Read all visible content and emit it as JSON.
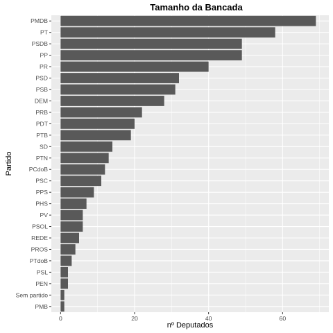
{
  "chart_data": {
    "type": "bar",
    "orientation": "horizontal",
    "title": "Tamanho da Bancada",
    "xlabel": "nº Deputados",
    "ylabel": "Partido",
    "categories": [
      "PMDB",
      "PT",
      "PSDB",
      "PP",
      "PR",
      "PSD",
      "PSB",
      "DEM",
      "PRB",
      "PDT",
      "PTB",
      "SD",
      "PTN",
      "PCdoB",
      "PSC",
      "PPS",
      "PHS",
      "PV",
      "PSOL",
      "REDE",
      "PROS",
      "PTdoB",
      "PSL",
      "PEN",
      "Sem partido",
      "PMB"
    ],
    "values": [
      69,
      58,
      49,
      49,
      40,
      32,
      31,
      28,
      22,
      20,
      19,
      14,
      13,
      12,
      11,
      9,
      7,
      6,
      6,
      5,
      4,
      3,
      2,
      2,
      1,
      1
    ],
    "xlim": [
      -2.5,
      72.5
    ],
    "xticks": [
      0,
      20,
      40,
      60
    ],
    "grid": true,
    "colors": {
      "bar": "#595959",
      "panel_background": "#ebebeb",
      "grid_major": "#ffffff"
    }
  }
}
